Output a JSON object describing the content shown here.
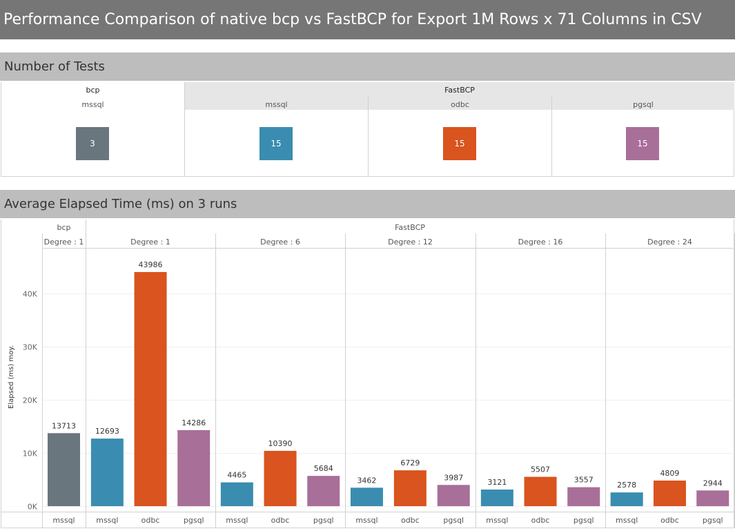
{
  "title": "Performance Comparison of native bcp vs FastBCP for  Export 1M Rows x 71 Columns in CSV",
  "colors": {
    "bcp_mssql": "#6a767e",
    "mssql": "#3a8db0",
    "odbc": "#d9541e",
    "pgsql": "#a86f98"
  },
  "tests_section": {
    "header": "Number of Tests",
    "groups": [
      {
        "label": "bcp",
        "subs": [
          {
            "label": "mssql",
            "count": "3",
            "color": "#6a767e"
          }
        ]
      },
      {
        "label": "FastBCP",
        "subs": [
          {
            "label": "mssql",
            "count": "15",
            "color": "#3a8db0"
          },
          {
            "label": "odbc",
            "count": "15",
            "color": "#d9541e"
          },
          {
            "label": "pgsql",
            "count": "15",
            "color": "#a86f98"
          }
        ]
      }
    ]
  },
  "elapsed_section": {
    "header": "Average Elapsed Time (ms) on 3 runs"
  },
  "chart_data": {
    "type": "bar",
    "ylabel": "Elapsed (ms) moy.",
    "ylim": [
      0,
      48000
    ],
    "yticks": [
      0,
      10000,
      20000,
      30000,
      40000
    ],
    "ytick_labels": [
      "0K",
      "10K",
      "20K",
      "30K",
      "40K"
    ],
    "grid": true,
    "groups": [
      {
        "tool": "bcp",
        "degree": "Degree : 1",
        "bars": [
          {
            "category": "mssql",
            "value": 13713,
            "label": "13713",
            "color": "#6a767e"
          }
        ]
      },
      {
        "tool": "FastBCP",
        "degree": "Degree : 1",
        "bars": [
          {
            "category": "mssql",
            "value": 12693,
            "label": "12693",
            "color": "#3a8db0"
          },
          {
            "category": "odbc",
            "value": 43986,
            "label": "43986",
            "color": "#d9541e"
          },
          {
            "category": "pgsql",
            "value": 14286,
            "label": "14286",
            "color": "#a86f98"
          }
        ]
      },
      {
        "tool": "FastBCP",
        "degree": "Degree : 6",
        "bars": [
          {
            "category": "mssql",
            "value": 4465,
            "label": "4465",
            "color": "#3a8db0"
          },
          {
            "category": "odbc",
            "value": 10390,
            "label": "10390",
            "color": "#d9541e"
          },
          {
            "category": "pgsql",
            "value": 5684,
            "label": "5684",
            "color": "#a86f98"
          }
        ]
      },
      {
        "tool": "FastBCP",
        "degree": "Degree : 12",
        "bars": [
          {
            "category": "mssql",
            "value": 3462,
            "label": "3462",
            "color": "#3a8db0"
          },
          {
            "category": "odbc",
            "value": 6729,
            "label": "6729",
            "color": "#d9541e"
          },
          {
            "category": "pgsql",
            "value": 3987,
            "label": "3987",
            "color": "#a86f98"
          }
        ]
      },
      {
        "tool": "FastBCP",
        "degree": "Degree : 16",
        "bars": [
          {
            "category": "mssql",
            "value": 3121,
            "label": "3121",
            "color": "#3a8db0"
          },
          {
            "category": "odbc",
            "value": 5507,
            "label": "5507",
            "color": "#d9541e"
          },
          {
            "category": "pgsql",
            "value": 3557,
            "label": "3557",
            "color": "#a86f98"
          }
        ]
      },
      {
        "tool": "FastBCP",
        "degree": "Degree : 24",
        "bars": [
          {
            "category": "mssql",
            "value": 2578,
            "label": "2578",
            "color": "#3a8db0"
          },
          {
            "category": "odbc",
            "value": 4809,
            "label": "4809",
            "color": "#d9541e"
          },
          {
            "category": "pgsql",
            "value": 2944,
            "label": "2944",
            "color": "#a86f98"
          }
        ]
      }
    ]
  }
}
